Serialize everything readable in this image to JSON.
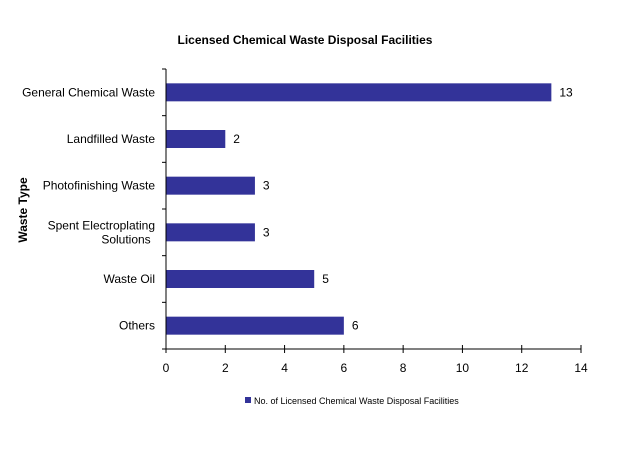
{
  "chart_data": {
    "type": "bar",
    "orientation": "horizontal",
    "title": "Licensed Chemical Waste Disposal Facilities",
    "xlabel": "",
    "ylabel": "Waste Type",
    "categories": [
      "General Chemical Waste",
      "Landfilled Waste",
      "Photofinishing Waste",
      "Spent Electroplating Solutions",
      "Waste Oil",
      "Others"
    ],
    "category_lines": [
      [
        "General Chemical Waste"
      ],
      [
        "Landfilled Waste"
      ],
      [
        "Photofinishing Waste"
      ],
      [
        "Spent Electroplating",
        "Solutions"
      ],
      [
        "Waste Oil"
      ],
      [
        "Others"
      ]
    ],
    "series": [
      {
        "name": "No. of Licensed Chemical Waste Disposal Facilities",
        "values": [
          13,
          2,
          3,
          3,
          5,
          6
        ],
        "color": "#333399"
      }
    ],
    "xlim": [
      0,
      14
    ],
    "xticks": [
      0,
      2,
      4,
      6,
      8,
      10,
      12,
      14
    ],
    "grid": false,
    "data_labels": true,
    "legend_position": "bottom"
  }
}
